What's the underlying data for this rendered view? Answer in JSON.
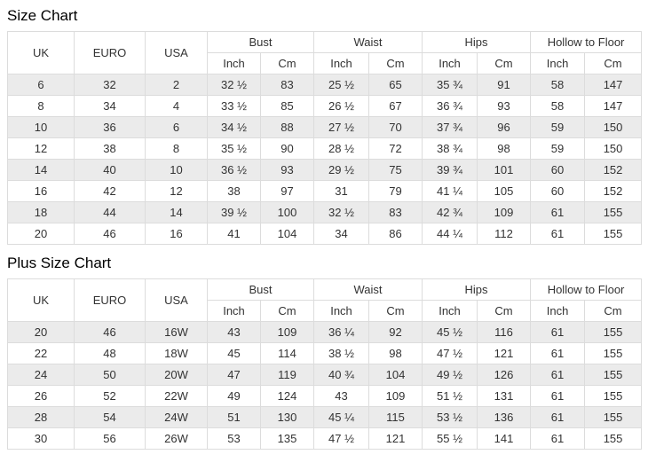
{
  "colors": {
    "stripe": "#ebebeb",
    "border": "#dcdcdc",
    "cell_text": "#333333",
    "title_text": "#000000"
  },
  "table_headers": {
    "simple": [
      "UK",
      "EURO",
      "USA"
    ],
    "groups": [
      "Bust",
      "Waist",
      "Hips",
      "Hollow to Floor"
    ],
    "sub": [
      "Inch",
      "Cm"
    ]
  },
  "tables": [
    {
      "title": "Size Chart",
      "rows": [
        [
          "6",
          "32",
          "2",
          "32 ½",
          "83",
          "25 ½",
          "65",
          "35 ¾",
          "91",
          "58",
          "147"
        ],
        [
          "8",
          "34",
          "4",
          "33 ½",
          "85",
          "26 ½",
          "67",
          "36 ¾",
          "93",
          "58",
          "147"
        ],
        [
          "10",
          "36",
          "6",
          "34 ½",
          "88",
          "27 ½",
          "70",
          "37 ¾",
          "96",
          "59",
          "150"
        ],
        [
          "12",
          "38",
          "8",
          "35 ½",
          "90",
          "28 ½",
          "72",
          "38 ¾",
          "98",
          "59",
          "150"
        ],
        [
          "14",
          "40",
          "10",
          "36 ½",
          "93",
          "29 ½",
          "75",
          "39 ¾",
          "101",
          "60",
          "152"
        ],
        [
          "16",
          "42",
          "12",
          "38",
          "97",
          "31",
          "79",
          "41 ¼",
          "105",
          "60",
          "152"
        ],
        [
          "18",
          "44",
          "14",
          "39 ½",
          "100",
          "32 ½",
          "83",
          "42 ¾",
          "109",
          "61",
          "155"
        ],
        [
          "20",
          "46",
          "16",
          "41",
          "104",
          "34",
          "86",
          "44 ¼",
          "112",
          "61",
          "155"
        ]
      ]
    },
    {
      "title": "Plus Size Chart",
      "rows": [
        [
          "20",
          "46",
          "16W",
          "43",
          "109",
          "36 ¼",
          "92",
          "45 ½",
          "116",
          "61",
          "155"
        ],
        [
          "22",
          "48",
          "18W",
          "45",
          "114",
          "38 ½",
          "98",
          "47 ½",
          "121",
          "61",
          "155"
        ],
        [
          "24",
          "50",
          "20W",
          "47",
          "119",
          "40 ¾",
          "104",
          "49 ½",
          "126",
          "61",
          "155"
        ],
        [
          "26",
          "52",
          "22W",
          "49",
          "124",
          "43",
          "109",
          "51 ½",
          "131",
          "61",
          "155"
        ],
        [
          "28",
          "54",
          "24W",
          "51",
          "130",
          "45 ¼",
          "115",
          "53 ½",
          "136",
          "61",
          "155"
        ],
        [
          "30",
          "56",
          "26W",
          "53",
          "135",
          "47 ½",
          "121",
          "55 ½",
          "141",
          "61",
          "155"
        ]
      ]
    }
  ]
}
